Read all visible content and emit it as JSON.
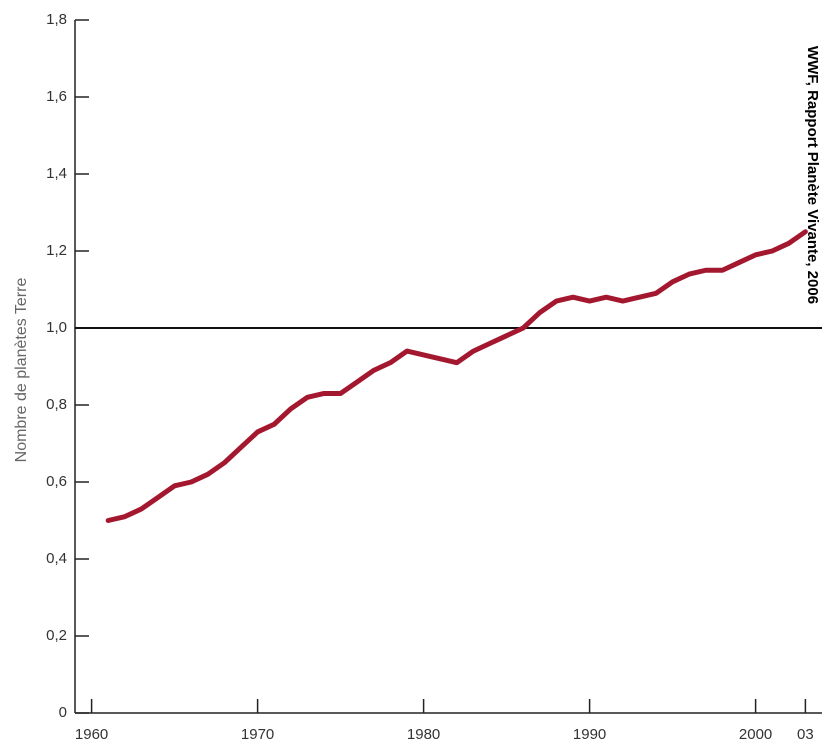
{
  "chart_data": {
    "type": "line",
    "y_label": "Nombre de planètes Terre",
    "source": "WWF, Rapport Planète Vivante, 2006",
    "x": [
      1961,
      1962,
      1963,
      1964,
      1965,
      1966,
      1967,
      1968,
      1969,
      1970,
      1971,
      1972,
      1973,
      1974,
      1975,
      1976,
      1977,
      1978,
      1979,
      1980,
      1981,
      1982,
      1983,
      1984,
      1985,
      1986,
      1987,
      1988,
      1989,
      1990,
      1991,
      1992,
      1993,
      1994,
      1995,
      1996,
      1997,
      1998,
      1999,
      2000,
      2001,
      2002,
      2003
    ],
    "series": [
      {
        "color": "#a3182f",
        "values": [
          0.5,
          0.51,
          0.53,
          0.56,
          0.59,
          0.6,
          0.62,
          0.65,
          0.69,
          0.73,
          0.75,
          0.79,
          0.82,
          0.83,
          0.83,
          0.86,
          0.89,
          0.91,
          0.94,
          0.93,
          0.92,
          0.91,
          0.94,
          0.96,
          0.98,
          1.0,
          1.04,
          1.07,
          1.08,
          1.07,
          1.08,
          1.07,
          1.08,
          1.09,
          1.12,
          1.14,
          1.15,
          1.15,
          1.17,
          1.19,
          1.2,
          1.22,
          1.25
        ]
      }
    ],
    "reference_line": 1,
    "xlim": [
      1959,
      2004
    ],
    "xticks": [
      1960,
      1970,
      1980,
      1990,
      2000,
      {
        "value": 2003,
        "label": "03"
      }
    ],
    "ylim": [
      0,
      1.8
    ],
    "yticks": [
      0,
      {
        "value": 0.2,
        "label": "0,2"
      },
      {
        "value": 0.4,
        "label": "0,4"
      },
      {
        "value": 0.6,
        "label": "0,6"
      },
      {
        "value": 0.8,
        "label": "0,8"
      },
      {
        "value": 1.0,
        "label": "1,0"
      },
      {
        "value": 1.2,
        "label": "1,2"
      },
      {
        "value": 1.4,
        "label": "1,4"
      },
      {
        "value": 1.6,
        "label": "1,6"
      },
      {
        "value": 1.8,
        "label": "1,8"
      }
    ]
  }
}
